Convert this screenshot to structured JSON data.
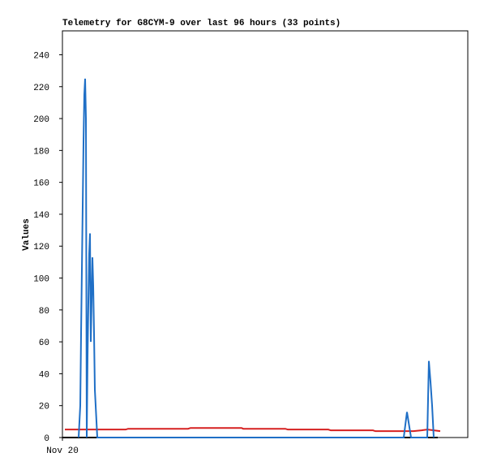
{
  "chart_data": {
    "type": "line",
    "title": "Telemetry for G8CYM-9 over last 96 hours (33 points)",
    "y_label": "Values",
    "xlim": [
      0,
      100
    ],
    "xticks": [
      {
        "value": 0,
        "label": "Nov 20"
      }
    ],
    "ylim": [
      0,
      255
    ],
    "yticks": [
      0,
      20,
      40,
      60,
      80,
      100,
      120,
      140,
      160,
      180,
      200,
      220,
      240
    ],
    "series": [
      {
        "color": "#000000",
        "x": [
          0,
          92.6
        ],
        "values": [
          0,
          0
        ]
      },
      {
        "color": "#d62020",
        "x": [
          0.6,
          15.6,
          16.2,
          31,
          31.6,
          44.2,
          44.6,
          55,
          55.6,
          65.6,
          66.2,
          76.6,
          77.2,
          86.6,
          88.6,
          90,
          91.6,
          93.2
        ],
        "values": [
          5,
          5,
          5.5,
          5.5,
          6,
          6,
          5.5,
          5.5,
          5,
          5,
          4.5,
          4.5,
          4,
          4,
          4.5,
          5,
          4.5,
          4
        ]
      },
      {
        "color": "#1f6fc6",
        "x": [
          4,
          4.4,
          4.6,
          4.8,
          5,
          5.2,
          5.4,
          5.6,
          5.8,
          6,
          6.2,
          6.4,
          6.6,
          6.8,
          7,
          7.2,
          7.4,
          7.6,
          7.8,
          8,
          8.4,
          8.6,
          84.2,
          85,
          86,
          90,
          90.4,
          90.8,
          91.2,
          91.6
        ],
        "values": [
          0,
          20,
          65,
          105,
          145,
          185,
          215,
          225,
          200,
          0,
          50,
          85,
          115,
          128,
          60,
          85,
          113,
          95,
          65,
          30,
          10,
          0,
          0,
          16,
          0,
          0,
          48,
          35,
          20,
          0
        ]
      }
    ]
  }
}
